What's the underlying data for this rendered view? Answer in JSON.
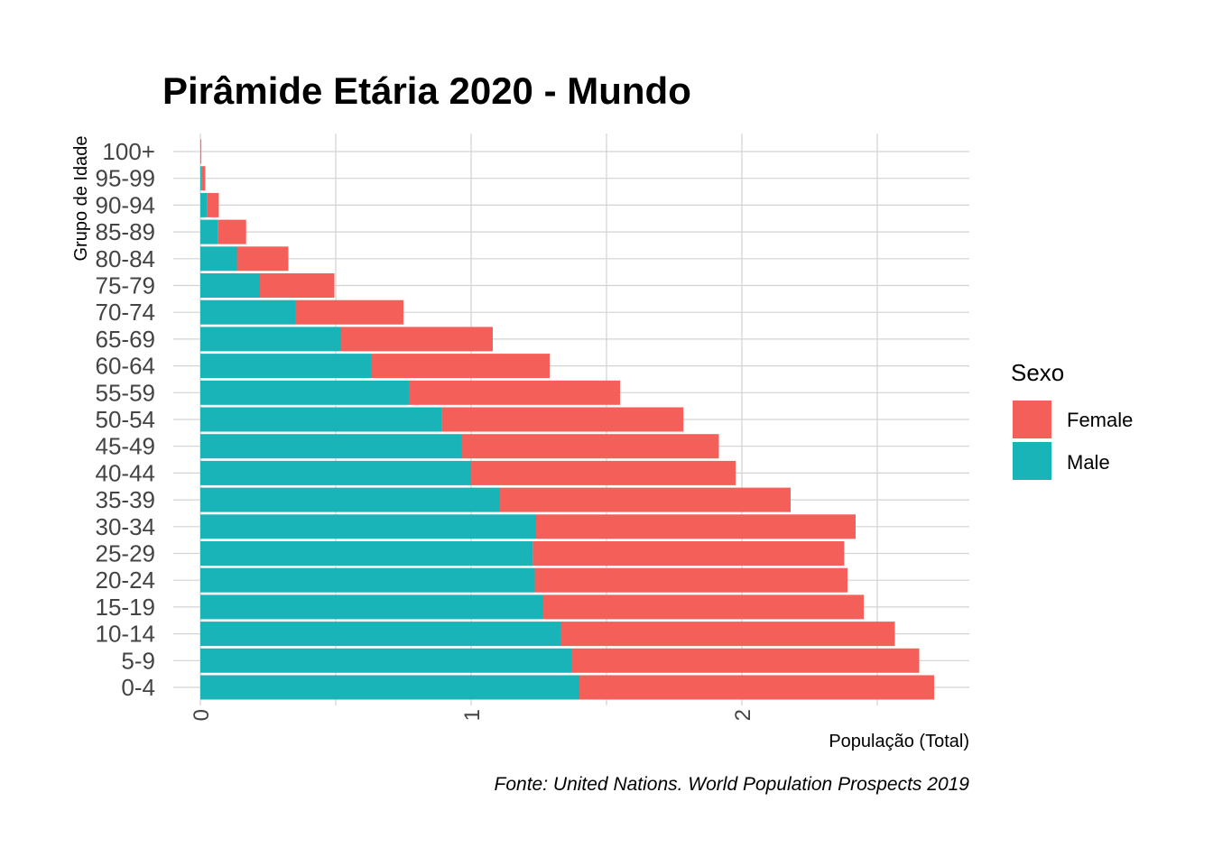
{
  "chart_data": {
    "type": "bar",
    "orientation": "horizontal",
    "stacked": true,
    "title": "Pirâmide Etária 2020 - Mundo",
    "xlabel": "População (Total)",
    "ylabel": "Grupo de Idade",
    "caption": "Fonte: United Nations. World Population Prospects 2019",
    "xlim": [
      0,
      2.85
    ],
    "xticks": [
      0,
      1,
      2
    ],
    "grid": true,
    "legend": {
      "title": "Sexo",
      "position": "right"
    },
    "categories": [
      "0-4",
      "5-9",
      "10-14",
      "15-19",
      "20-24",
      "25-29",
      "30-34",
      "35-39",
      "40-44",
      "45-49",
      "50-54",
      "55-59",
      "60-64",
      "65-69",
      "70-74",
      "75-79",
      "80-84",
      "85-89",
      "90-94",
      "95-99",
      "100+"
    ],
    "series": [
      {
        "name": "Male",
        "color": "#19b4b8",
        "values": [
          1.4,
          1.37,
          1.33,
          1.265,
          1.235,
          1.228,
          1.24,
          1.105,
          1.0,
          0.965,
          0.892,
          0.77,
          0.63,
          0.52,
          0.35,
          0.22,
          0.135,
          0.064,
          0.026,
          0.006,
          0.0008
        ]
      },
      {
        "name": "Female",
        "color": "#f55f5a",
        "values": [
          1.31,
          1.285,
          1.235,
          1.185,
          1.155,
          1.15,
          1.18,
          1.075,
          0.977,
          0.95,
          0.892,
          0.78,
          0.66,
          0.56,
          0.4,
          0.275,
          0.19,
          0.105,
          0.042,
          0.012,
          0.002
        ]
      }
    ]
  }
}
